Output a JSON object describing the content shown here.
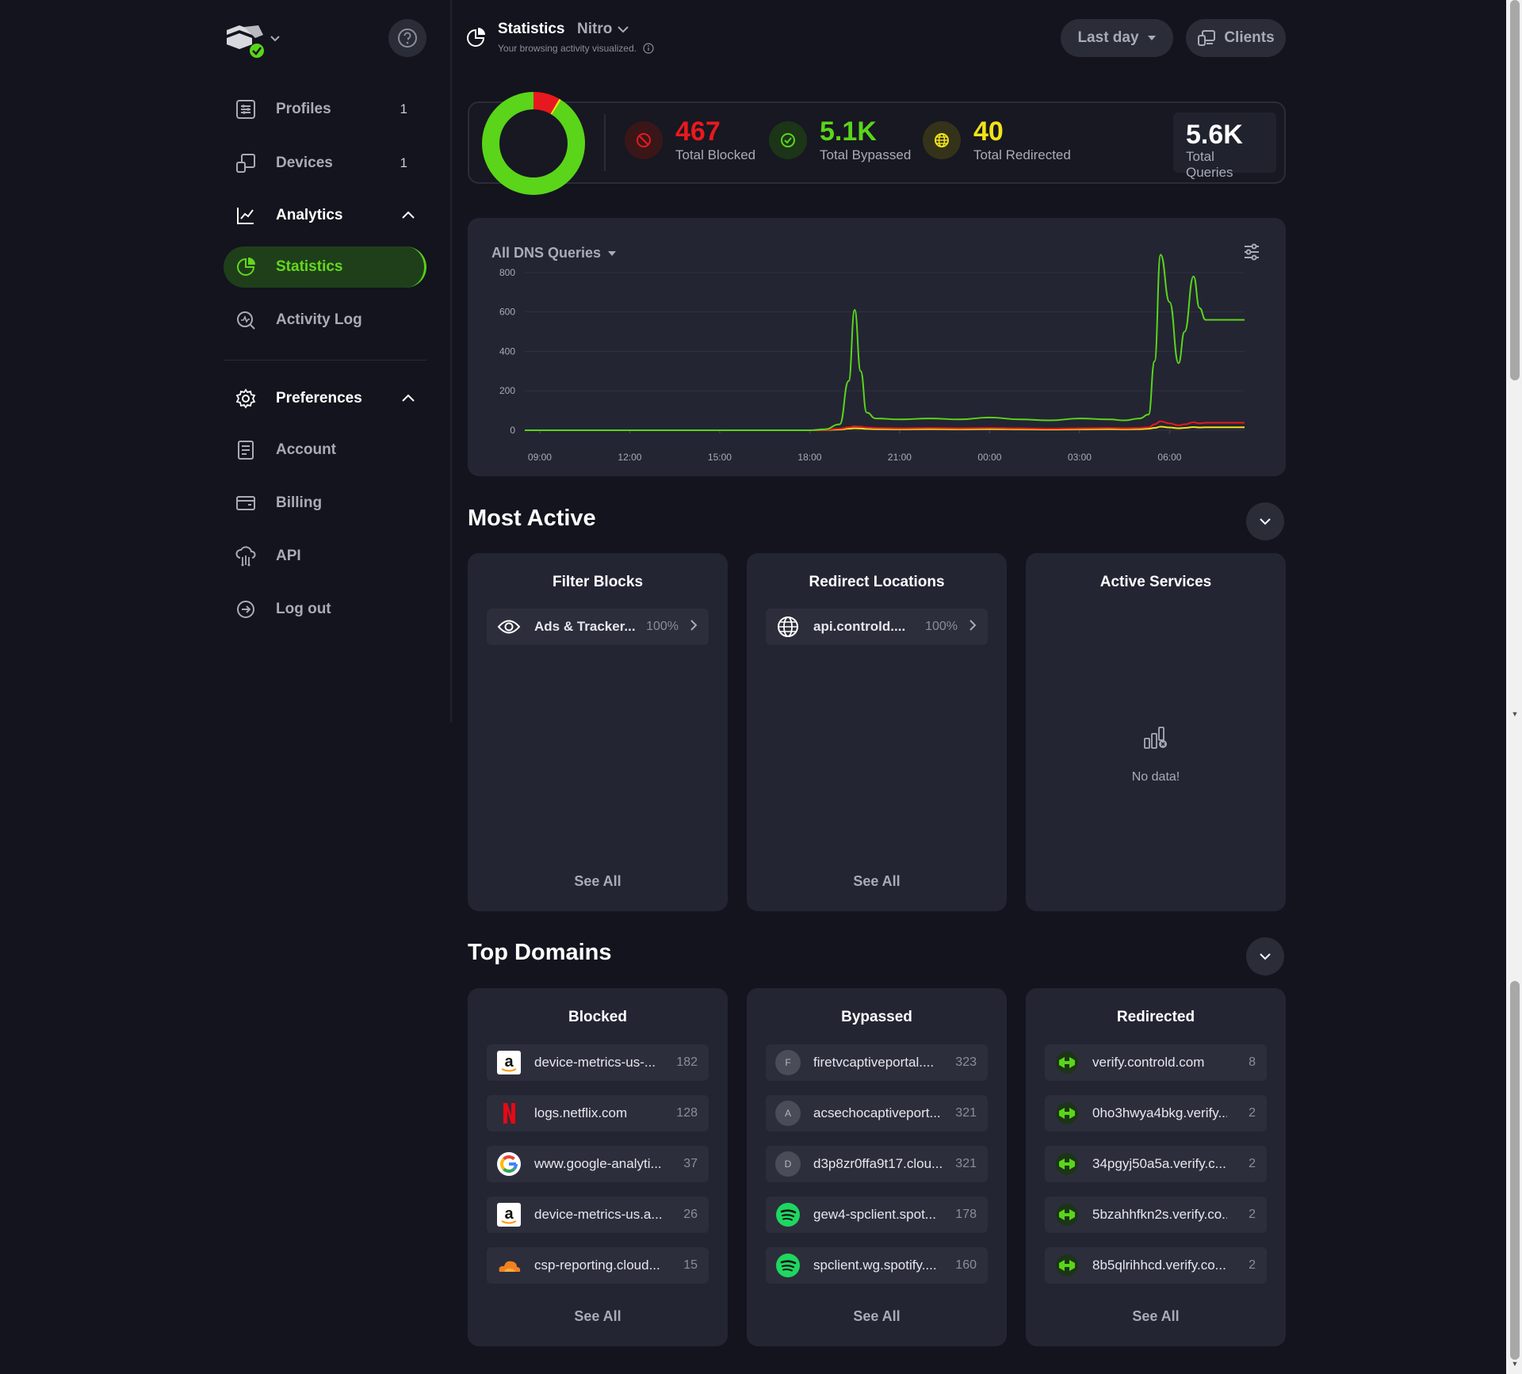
{
  "sidebar": {
    "items": [
      {
        "label": "Profiles",
        "count": "1"
      },
      {
        "label": "Devices",
        "count": "1"
      },
      {
        "label": "Analytics"
      },
      {
        "label": "Statistics"
      },
      {
        "label": "Activity Log"
      },
      {
        "label": "Preferences"
      },
      {
        "label": "Account"
      },
      {
        "label": "Billing"
      },
      {
        "label": "API"
      },
      {
        "label": "Log out"
      }
    ]
  },
  "header": {
    "title": "Statistics",
    "profile": "Nitro",
    "subtitle": "Your browsing activity visualized.",
    "range_label": "Last day",
    "clients_label": "Clients"
  },
  "summary": {
    "blocked": {
      "value": "467",
      "label": "Total Blocked"
    },
    "bypassed": {
      "value": "5.1K",
      "label": "Total Bypassed"
    },
    "redirected": {
      "value": "40",
      "label": "Total Redirected"
    },
    "total": {
      "value": "5.6K",
      "label": "Total Queries"
    },
    "colors": {
      "blocked": "#e8191e",
      "bypassed": "#5ad51a",
      "redirected": "#f0e21a"
    }
  },
  "chart_data": {
    "type": "line",
    "title": "All DNS Queries",
    "x_ticks": [
      "09:00",
      "12:00",
      "15:00",
      "18:00",
      "21:00",
      "00:00",
      "03:00",
      "06:00"
    ],
    "y_ticks": [
      "0",
      "200",
      "400",
      "600",
      "800"
    ],
    "ylim": [
      0,
      900
    ],
    "x_hours": [
      8.5,
      9,
      10,
      11,
      12,
      13,
      14,
      15,
      16,
      17,
      18,
      18.5,
      19,
      19.3,
      19.5,
      19.7,
      19.9,
      20.2,
      21,
      22,
      23,
      24,
      25,
      26,
      27,
      28,
      28.5,
      29,
      29.3,
      29.5,
      29.7,
      30,
      30.3,
      30.5,
      30.8,
      31,
      31.2,
      32.5
    ],
    "series": [
      {
        "color": "#5ad51a",
        "values": [
          0,
          0,
          0,
          0,
          0,
          0,
          0,
          0,
          0,
          0,
          0,
          5,
          30,
          250,
          610,
          300,
          90,
          60,
          55,
          60,
          55,
          65,
          55,
          50,
          60,
          55,
          50,
          60,
          80,
          350,
          890,
          650,
          340,
          500,
          780,
          620,
          560,
          560
        ]
      },
      {
        "color": "#e8191e",
        "values": [
          0,
          0,
          0,
          0,
          0,
          0,
          0,
          0,
          0,
          0,
          0,
          2,
          8,
          15,
          20,
          18,
          14,
          12,
          10,
          12,
          10,
          12,
          10,
          8,
          10,
          12,
          10,
          12,
          15,
          30,
          45,
          35,
          25,
          30,
          40,
          35,
          38,
          38
        ]
      },
      {
        "color": "#f0e21a",
        "values": [
          0,
          0,
          0,
          0,
          0,
          0,
          0,
          0,
          0,
          0,
          0,
          1,
          4,
          8,
          10,
          9,
          7,
          6,
          5,
          6,
          5,
          6,
          5,
          4,
          5,
          6,
          5,
          6,
          8,
          12,
          18,
          14,
          10,
          12,
          16,
          14,
          15,
          15
        ]
      }
    ]
  },
  "most_active": {
    "title": "Most Active",
    "filter_blocks": {
      "title": "Filter Blocks",
      "items": [
        {
          "name": "Ads & Tracker...",
          "pct": "100%"
        }
      ],
      "see_all": "See All"
    },
    "redirect_locations": {
      "title": "Redirect Locations",
      "items": [
        {
          "name": "api.controld....",
          "pct": "100%"
        }
      ],
      "see_all": "See All"
    },
    "active_services": {
      "title": "Active Services",
      "empty": "No data!"
    }
  },
  "top_domains": {
    "title": "Top Domains",
    "blocked": {
      "title": "Blocked",
      "items": [
        {
          "name": "device-metrics-us-...",
          "count": "182",
          "icon": "amazon-icon"
        },
        {
          "name": "logs.netflix.com",
          "count": "128",
          "icon": "netflix-icon"
        },
        {
          "name": "www.google-analyti...",
          "count": "37",
          "icon": "google-icon"
        },
        {
          "name": "device-metrics-us.a...",
          "count": "26",
          "icon": "amazon-icon"
        },
        {
          "name": "csp-reporting.cloud...",
          "count": "15",
          "icon": "cloudflare-icon"
        }
      ],
      "see_all": "See All"
    },
    "bypassed": {
      "title": "Bypassed",
      "items": [
        {
          "name": "firetvcaptiveportal....",
          "count": "323",
          "letter": "F"
        },
        {
          "name": "acsechocaptiveport...",
          "count": "321",
          "letter": "A"
        },
        {
          "name": "d3p8zr0ffa9t17.clou...",
          "count": "321",
          "letter": "D"
        },
        {
          "name": "gew4-spclient.spot...",
          "count": "178",
          "icon": "spotify-icon"
        },
        {
          "name": "spclient.wg.spotify....",
          "count": "160",
          "icon": "spotify-icon"
        }
      ],
      "see_all": "See All"
    },
    "redirected": {
      "title": "Redirected",
      "items": [
        {
          "name": "verify.controld.com",
          "count": "8"
        },
        {
          "name": "0ho3hwya4bkg.verify....",
          "count": "2"
        },
        {
          "name": "34pgyj50a5a.verify.c...",
          "count": "2"
        },
        {
          "name": "5bzahhfkn2s.verify.co...",
          "count": "2"
        },
        {
          "name": "8b5qlrihhcd.verify.co...",
          "count": "2"
        }
      ],
      "see_all": "See All"
    }
  }
}
